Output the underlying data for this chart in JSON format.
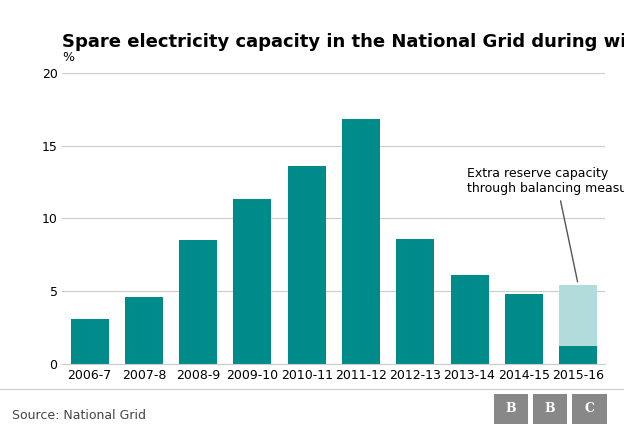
{
  "title": "Spare electricity capacity in the National Grid during winter",
  "ylabel": "%",
  "categories": [
    "2006-7",
    "2007-8",
    "2008-9",
    "2009-10",
    "2010-11",
    "2011-12",
    "2012-13",
    "2013-14",
    "2014-15",
    "2015-16"
  ],
  "values_main": [
    3.1,
    4.6,
    8.5,
    11.3,
    13.6,
    16.8,
    8.6,
    6.1,
    4.8,
    1.2
  ],
  "value_extra": 4.2,
  "bar_color": "#008B8B",
  "extra_color": "#b2dcdc",
  "ylim": [
    0,
    20
  ],
  "yticks": [
    0,
    5,
    10,
    15,
    20
  ],
  "source_text": "Source: National Grid",
  "annotation_text": "Extra reserve capacity\nthrough balancing measures",
  "annotation_fontsize": 9,
  "title_fontsize": 13,
  "label_fontsize": 9,
  "source_fontsize": 9,
  "background_color": "#ffffff",
  "grid_color": "#cccccc",
  "bbc_bg": "#888888"
}
